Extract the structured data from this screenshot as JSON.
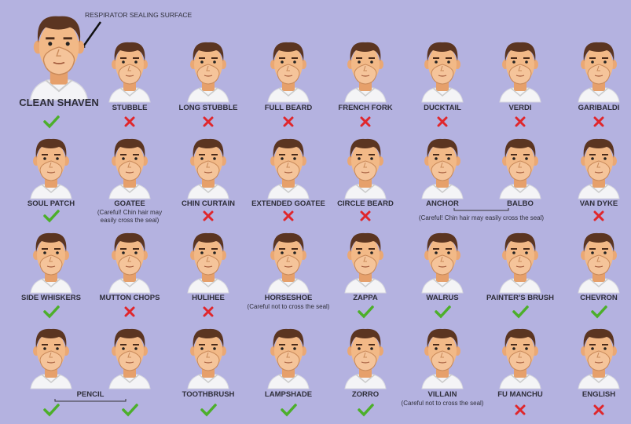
{
  "annotation": "RESPIRATOR SEALING SURFACE",
  "rows": [
    {
      "items": [
        {
          "label": "CLEAN SHAVEN",
          "ok": true,
          "featured": true
        },
        {
          "label": "STUBBLE",
          "ok": false
        },
        {
          "label": "LONG STUBBLE",
          "ok": false
        },
        {
          "label": "FULL BEARD",
          "ok": false
        },
        {
          "label": "FRENCH FORK",
          "ok": false
        },
        {
          "label": "DUCKTAIL",
          "ok": false
        },
        {
          "label": "VERDI",
          "ok": false
        },
        {
          "label": "GARIBALDI",
          "ok": false
        }
      ]
    },
    {
      "items": [
        {
          "label": "SOUL PATCH",
          "ok": true
        },
        {
          "label": "GOATEE",
          "note": [
            "(Careful! Chin hair may",
            "easily cross the seal)"
          ]
        },
        {
          "label": "CHIN CURTAIN",
          "ok": false
        },
        {
          "label": "EXTENDED GOATEE",
          "ok": false
        },
        {
          "label": "CIRCLE BEARD",
          "ok": false
        },
        {
          "caption": "(Careful! Chin hair may easily cross the seal)",
          "items": [
            {
              "label": "ANCHOR"
            },
            {
              "label": "BALBO"
            }
          ]
        },
        {
          "label": "VAN DYKE",
          "ok": false
        }
      ]
    },
    {
      "items": [
        {
          "label": "SIDE WHISKERS",
          "ok": true
        },
        {
          "label": "MUTTON CHOPS",
          "ok": false
        },
        {
          "label": "HULIHEE",
          "ok": false
        },
        {
          "label": "HORSESHOE",
          "note": [
            "(Careful not to cross the seal)"
          ]
        },
        {
          "label": "ZAPPA",
          "ok": true
        },
        {
          "label": "WALRUS",
          "ok": true
        },
        {
          "label": "PAINTER'S BRUSH",
          "ok": true
        },
        {
          "label": "CHEVRON",
          "ok": true
        }
      ]
    },
    {
      "items": [
        {
          "caption": "PENCIL",
          "items": [
            {
              "ok": true
            },
            {
              "ok": true
            }
          ]
        },
        {
          "label": "TOOTHBRUSH",
          "ok": true
        },
        {
          "label": "LAMPSHADE",
          "ok": true
        },
        {
          "label": "ZORRO",
          "ok": true
        },
        {
          "label": "VILLAIN",
          "note": [
            "(Careful not to cross the seal)"
          ]
        },
        {
          "label": "FU MANCHU",
          "ok": false
        },
        {
          "label": "ENGLISH",
          "ok": false
        }
      ]
    }
  ]
}
